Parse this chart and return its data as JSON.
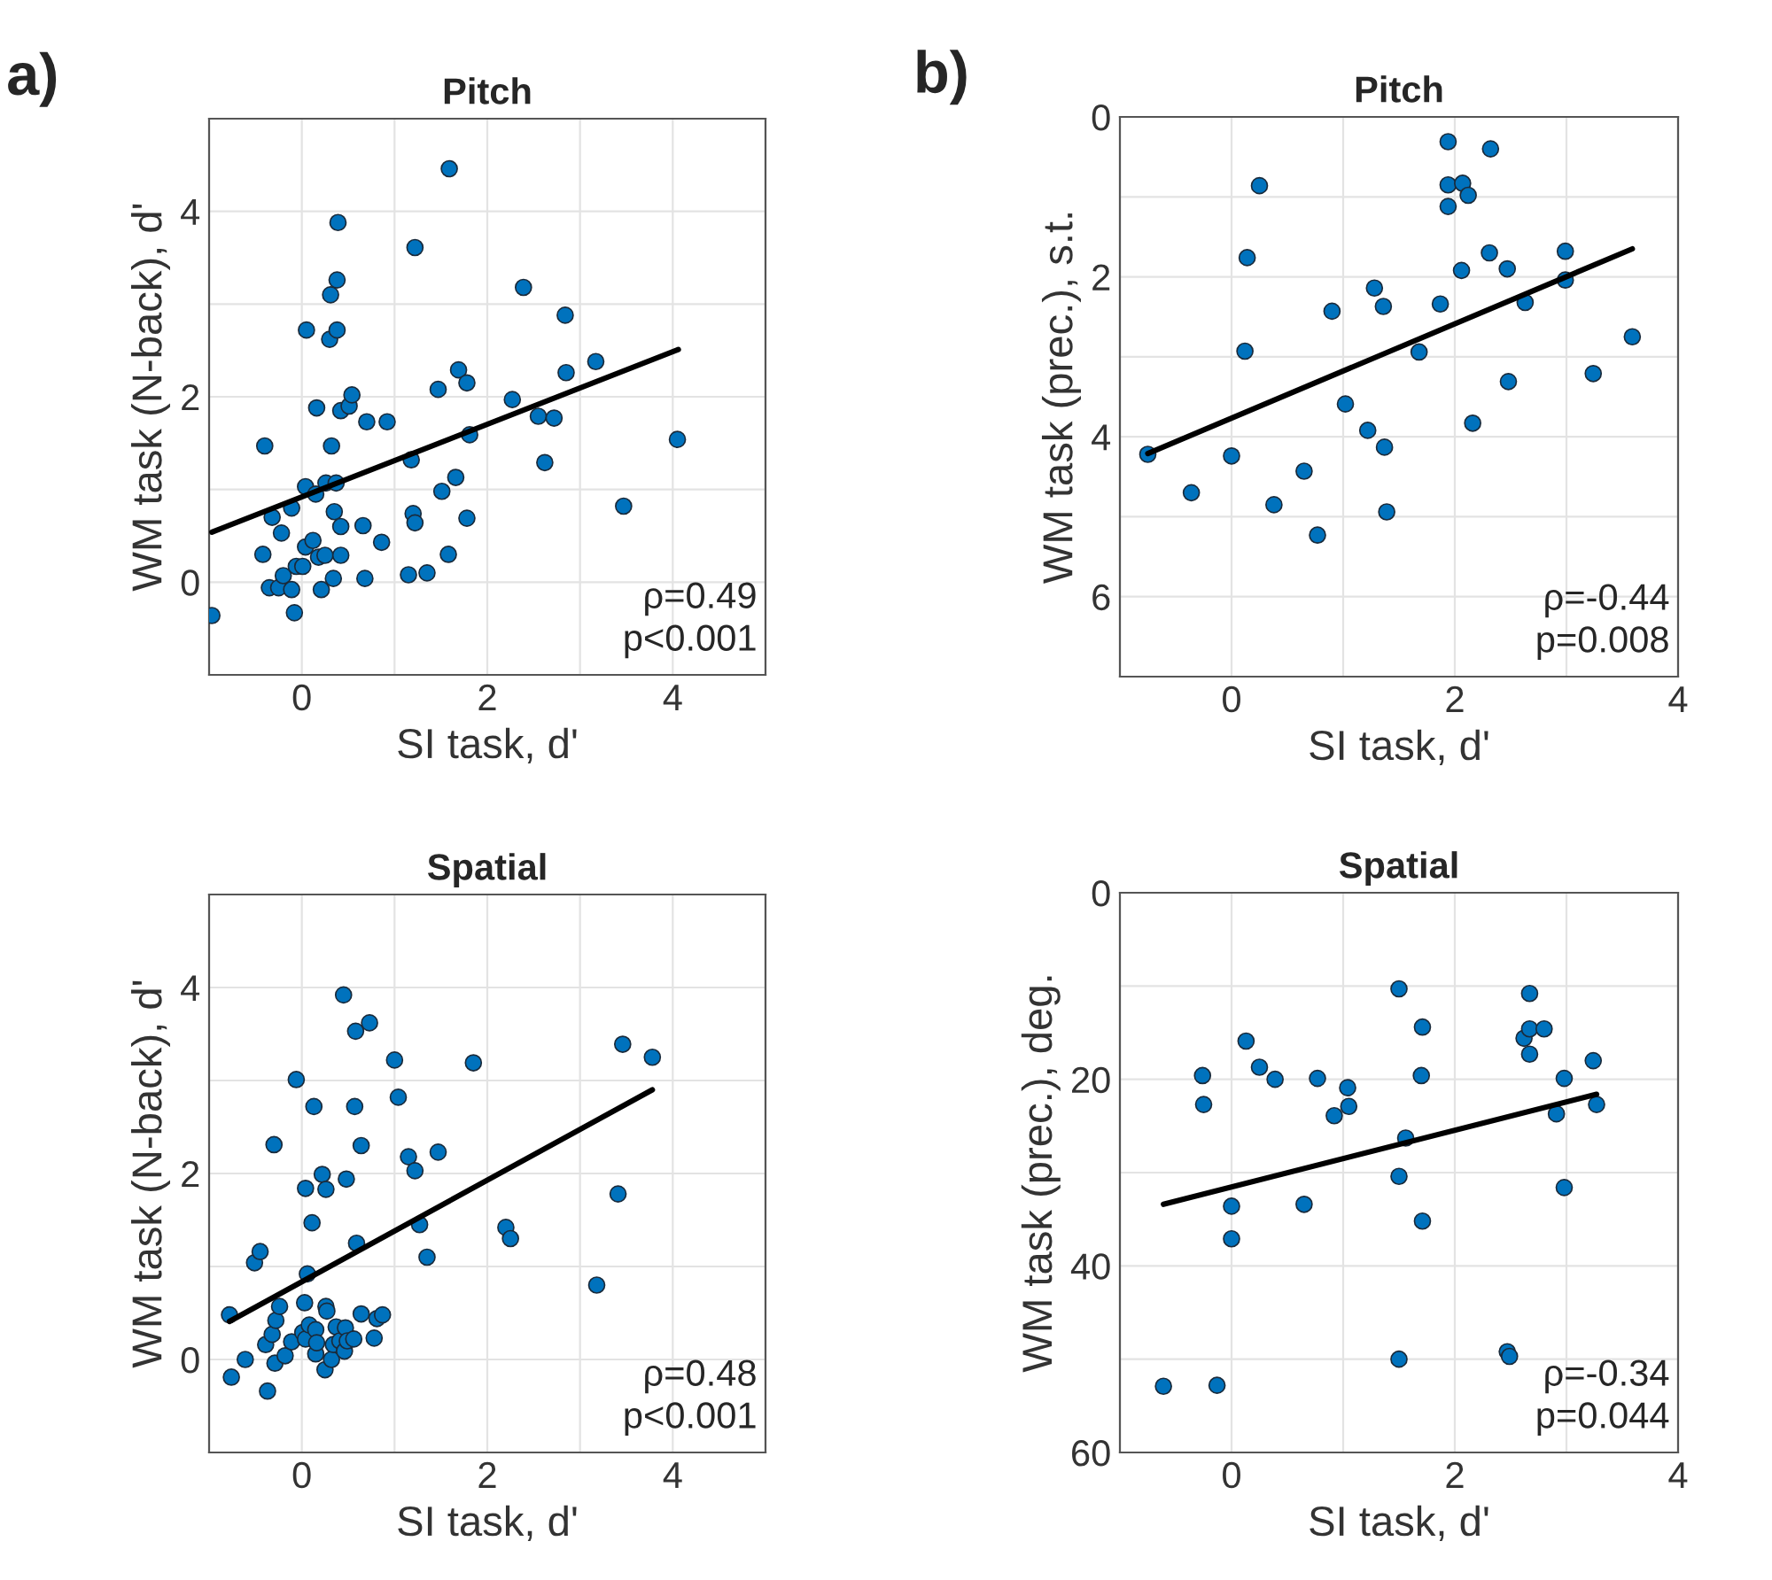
{
  "chart_data": [
    {
      "type": "scatter",
      "title": "Pitch",
      "xlabel": "SI task, d'",
      "ylabel": "WM task (N-back), d'",
      "xlim": [
        -1,
        5
      ],
      "ylim": [
        -1,
        5
      ],
      "xticks": [
        {
          "value": -1,
          "label": null
        },
        0,
        {
          "value": 1,
          "label": null
        },
        2,
        {
          "value": 3,
          "label": null
        },
        4,
        {
          "value": 5,
          "label": null
        }
      ],
      "yticks": [
        {
          "value": -1,
          "label": null
        },
        0,
        {
          "value": 1,
          "label": null
        },
        2,
        {
          "value": 3,
          "label": null
        },
        4,
        {
          "value": 5,
          "label": null
        }
      ],
      "grid": true,
      "legend": false,
      "annotations": [
        "a)",
        "ρ=0.49",
        "p<0.001"
      ],
      "series": [
        {
          "marker": "circle",
          "color": "#0072bd",
          "x": [
            -0.97,
            -0.4,
            -0.42,
            -0.32,
            -0.22,
            -0.35,
            -0.25,
            -0.2,
            -0.11,
            -0.11,
            -0.08,
            -0.06,
            0.01,
            0.04,
            0.05,
            0.04,
            0.12,
            0.15,
            0.16,
            0.18,
            0.21,
            0.25,
            0.26,
            0.3,
            0.31,
            0.32,
            0.34,
            0.35,
            0.37,
            0.38,
            0.38,
            0.39,
            0.42,
            0.42,
            0.42,
            0.51,
            0.54,
            0.66,
            0.68,
            0.7,
            0.86,
            0.92,
            1.15,
            1.18,
            1.2,
            1.22,
            1.22,
            1.35,
            1.47,
            1.51,
            1.58,
            1.59,
            1.66,
            1.69,
            1.78,
            1.78,
            1.81,
            2.27,
            2.39,
            2.55,
            2.62,
            2.72,
            2.84,
            2.85,
            3.17,
            3.47,
            4.05
          ],
          "values": [
            -0.36,
            1.47,
            0.3,
            0.7,
            0.53,
            -0.06,
            -0.06,
            0.07,
            0.8,
            -0.08,
            -0.33,
            0.17,
            0.17,
            0.38,
            2.72,
            1.03,
            0.45,
            0.95,
            1.88,
            0.27,
            -0.08,
            0.29,
            1.07,
            2.62,
            3.1,
            1.47,
            0.04,
            0.76,
            1.07,
            3.26,
            2.72,
            3.88,
            0.6,
            0.29,
            1.85,
            1.9,
            2.02,
            0.61,
            0.04,
            1.73,
            0.43,
            1.73,
            0.08,
            1.32,
            0.74,
            0.64,
            3.61,
            0.1,
            2.08,
            0.98,
            0.3,
            4.46,
            1.13,
            2.29,
            2.15,
            0.69,
            1.59,
            1.97,
            3.18,
            1.79,
            1.29,
            1.77,
            2.88,
            2.26,
            2.38,
            0.82,
            1.54
          ]
        },
        {
          "type": "line",
          "color": "#000000",
          "x": [
            -0.97,
            4.06
          ],
          "values": [
            0.54,
            2.51
          ]
        }
      ]
    },
    {
      "type": "scatter",
      "title": "Pitch",
      "xlabel": "SI task, d'",
      "ylabel": "WM task (prec.), s.t.",
      "xlim": [
        -1,
        4
      ],
      "ylim": [
        7,
        0
      ],
      "xticks": [
        {
          "value": -1,
          "label": null
        },
        0,
        {
          "value": 1,
          "label": null
        },
        2,
        {
          "value": 3,
          "label": null
        },
        4
      ],
      "yticks": [
        0,
        {
          "value": 1,
          "label": null
        },
        2,
        {
          "value": 3,
          "label": null
        },
        4,
        {
          "value": 5,
          "label": null
        },
        6,
        {
          "value": 7,
          "label": null
        }
      ],
      "grid": true,
      "legend": false,
      "annotations": [
        "b)",
        "ρ=-0.44",
        "p=0.008"
      ],
      "series": [
        {
          "marker": "circle",
          "color": "#0072bd",
          "x": [
            -0.75,
            -0.36,
            0.0,
            0.12,
            0.14,
            0.25,
            0.38,
            0.65,
            0.77,
            0.9,
            1.02,
            1.22,
            1.28,
            1.36,
            1.37,
            1.39,
            1.68,
            1.87,
            1.94,
            1.94,
            1.94,
            2.06,
            2.07,
            2.12,
            2.16,
            2.31,
            2.32,
            2.47,
            2.48,
            2.63,
            2.99,
            2.99,
            3.24,
            3.59
          ],
          "values": [
            4.22,
            4.7,
            4.24,
            2.93,
            1.76,
            0.86,
            4.85,
            4.43,
            5.23,
            2.43,
            3.59,
            3.92,
            2.14,
            2.37,
            4.13,
            4.94,
            2.94,
            2.34,
            0.31,
            0.85,
            1.12,
            1.92,
            0.83,
            0.98,
            3.83,
            1.7,
            0.4,
            1.9,
            3.31,
            2.32,
            1.68,
            2.04,
            3.21,
            2.75
          ]
        },
        {
          "type": "line",
          "color": "#000000",
          "x": [
            -0.75,
            3.59
          ],
          "values": [
            4.21,
            1.65
          ]
        }
      ]
    },
    {
      "type": "scatter",
      "title": "Spatial",
      "xlabel": "SI task, d'",
      "ylabel": "WM task (N-back), d'",
      "xlim": [
        -1,
        5
      ],
      "ylim": [
        -1,
        5
      ],
      "xticks": [
        {
          "value": -1,
          "label": null
        },
        0,
        {
          "value": 1,
          "label": null
        },
        2,
        {
          "value": 3,
          "label": null
        },
        4,
        {
          "value": 5,
          "label": null
        }
      ],
      "yticks": [
        {
          "value": -1,
          "label": null
        },
        0,
        {
          "value": 1,
          "label": null
        },
        2,
        {
          "value": 3,
          "label": null
        },
        4,
        {
          "value": 5,
          "label": null
        }
      ],
      "grid": true,
      "legend": false,
      "annotations": [
        "ρ=0.48",
        "p<0.001"
      ],
      "series": [
        {
          "marker": "circle",
          "color": "#0072bd",
          "x": [
            -0.78,
            -0.76,
            -0.61,
            -0.51,
            -0.45,
            -0.39,
            -0.37,
            -0.32,
            -0.3,
            -0.28,
            -0.29,
            -0.24,
            -0.18,
            -0.11,
            -0.06,
            0.01,
            0.03,
            0.04,
            0.06,
            0.04,
            0.08,
            0.11,
            0.13,
            0.15,
            0.15,
            0.16,
            0.22,
            0.25,
            0.26,
            0.26,
            0.27,
            0.32,
            0.34,
            0.37,
            0.41,
            0.45,
            0.46,
            0.47,
            0.48,
            0.49,
            0.56,
            0.57,
            0.58,
            0.59,
            0.64,
            0.64,
            0.73,
            0.78,
            0.81,
            0.87,
            1.0,
            1.04,
            1.15,
            1.22,
            1.27,
            1.35,
            1.47,
            1.85,
            2.2,
            2.25,
            3.18,
            3.41,
            3.46,
            3.78
          ],
          "values": [
            0.48,
            -0.19,
            0.0,
            1.04,
            1.16,
            0.16,
            -0.34,
            0.27,
            2.31,
            0.42,
            -0.04,
            0.57,
            0.04,
            0.19,
            3.01,
            0.29,
            0.61,
            1.84,
            0.92,
            0.22,
            0.37,
            1.47,
            2.72,
            0.32,
            0.06,
            0.18,
            1.99,
            -0.11,
            1.83,
            0.57,
            0.52,
            0.0,
            0.16,
            0.35,
            0.2,
            3.92,
            0.09,
            0.34,
            1.94,
            0.2,
            0.22,
            2.72,
            3.53,
            1.25,
            0.49,
            2.3,
            3.62,
            0.23,
            0.44,
            0.48,
            3.22,
            2.82,
            2.18,
            2.03,
            1.45,
            1.1,
            2.23,
            3.19,
            1.42,
            1.3,
            0.8,
            1.78,
            3.39,
            3.25
          ]
        },
        {
          "type": "line",
          "color": "#000000",
          "x": [
            -0.78,
            3.78
          ],
          "values": [
            0.41,
            2.9
          ]
        }
      ]
    },
    {
      "type": "scatter",
      "title": "Spatial",
      "xlabel": "SI task, d'",
      "ylabel": "WM task (prec.), deg.",
      "xlim": [
        -1,
        4
      ],
      "ylim": [
        60,
        0
      ],
      "xticks": [
        {
          "value": -1,
          "label": null
        },
        0,
        {
          "value": 1,
          "label": null
        },
        2,
        {
          "value": 3,
          "label": null
        },
        4
      ],
      "yticks": [
        0,
        {
          "value": 10,
          "label": null
        },
        20,
        {
          "value": 30,
          "label": null
        },
        40,
        {
          "value": 50,
          "label": null
        },
        60
      ],
      "grid": true,
      "legend": false,
      "annotations": [
        "ρ=-0.34",
        "p=0.044"
      ],
      "series": [
        {
          "marker": "circle",
          "color": "#0072bd",
          "x": [
            -0.61,
            -0.13,
            -0.26,
            -0.25,
            0.0,
            0.0,
            0.13,
            0.25,
            0.39,
            0.77,
            0.92,
            1.04,
            1.05,
            0.65,
            1.5,
            1.5,
            1.5,
            1.56,
            1.7,
            1.71,
            1.71,
            2.47,
            2.49,
            2.62,
            2.67,
            2.67,
            2.67,
            2.8,
            2.91,
            2.98,
            2.98,
            3.24,
            3.27
          ],
          "values": [
            52.9,
            52.8,
            19.6,
            22.7,
            33.6,
            37.1,
            15.9,
            18.7,
            20.0,
            19.9,
            23.9,
            20.9,
            22.9,
            33.4,
            10.3,
            30.4,
            50.0,
            26.3,
            19.6,
            14.4,
            35.2,
            49.2,
            49.7,
            15.6,
            10.8,
            14.6,
            17.3,
            14.6,
            23.7,
            19.9,
            31.6,
            18.0,
            22.7
          ]
        },
        {
          "type": "line",
          "color": "#000000",
          "x": [
            -0.61,
            3.27
          ],
          "values": [
            33.4,
            21.6
          ]
        }
      ]
    }
  ]
}
